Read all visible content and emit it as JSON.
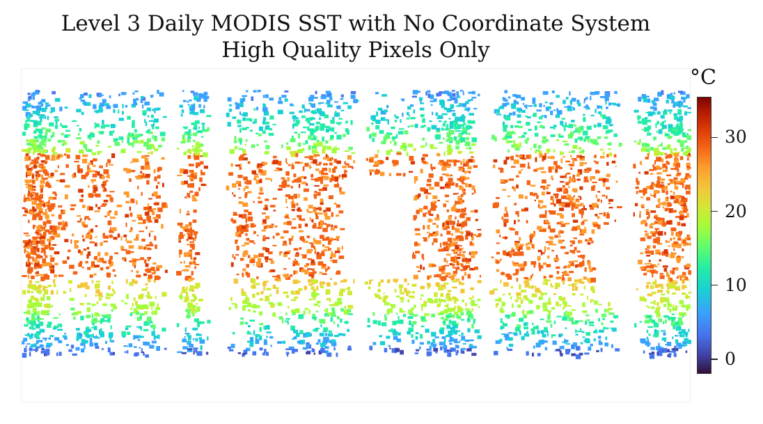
{
  "title": "Level 3 Daily MODIS SST with No Coordinate System",
  "subtitle": "High Quality Pixels Only",
  "colorbar": {
    "unit": "°C",
    "min": -2,
    "max": 35.5,
    "ticks": [
      {
        "value": 0,
        "label": "0"
      },
      {
        "value": 10,
        "label": "10"
      },
      {
        "value": 20,
        "label": "20"
      },
      {
        "value": 30,
        "label": "30"
      }
    ],
    "colormap": "turbo",
    "colors": [
      "#30123b",
      "#4145ab",
      "#4675ed",
      "#39a2fc",
      "#1bcfd4",
      "#24eca6",
      "#61fc6c",
      "#a4fc3b",
      "#d1e834",
      "#f3c63a",
      "#fe9b2d",
      "#f36315",
      "#d93806",
      "#b11901",
      "#7a0403"
    ]
  },
  "map": {
    "projection": "none (raw grid)",
    "swath_temperature_rows_c": [
      {
        "lat_band": "northern high latitudes",
        "typical": 8
      },
      {
        "lat_band": "northern mid latitudes",
        "typical": 22
      },
      {
        "lat_band": "tropics",
        "typical": 29
      },
      {
        "lat_band": "southern mid latitudes",
        "typical": 17
      },
      {
        "lat_band": "southern high latitudes",
        "typical": 4
      }
    ]
  }
}
